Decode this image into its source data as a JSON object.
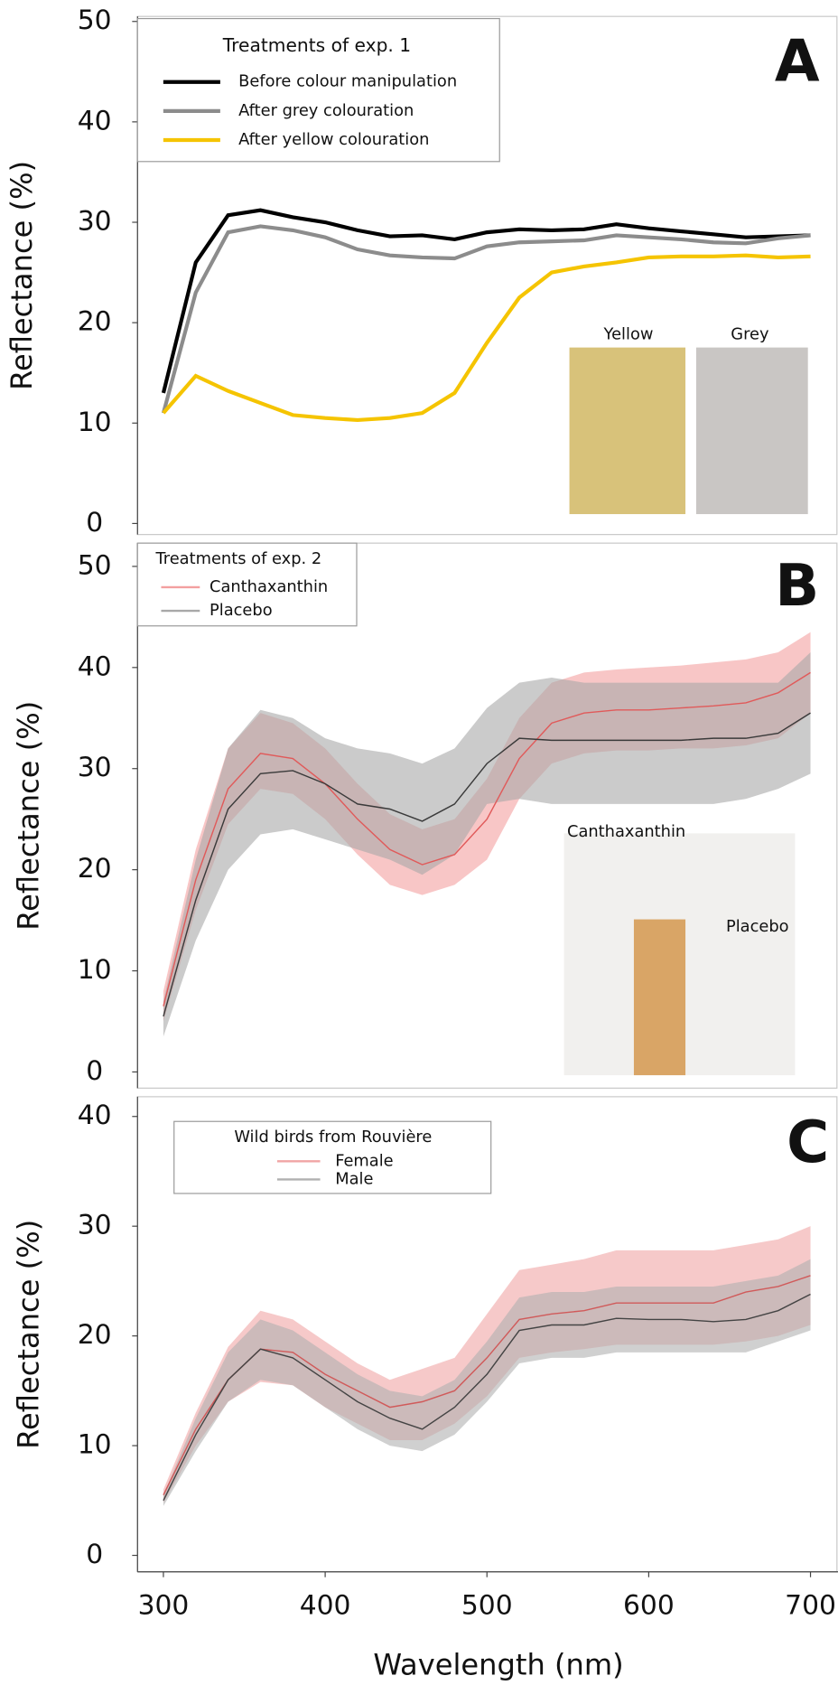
{
  "chart_data": [
    {
      "type": "line",
      "panel_label": "A",
      "ylabel": "Reflectance (%)",
      "legend_title": "Treatments of exp. 1",
      "xlim": [
        284,
        717
      ],
      "ylim": [
        -1.1,
        50.5
      ],
      "yticks": [
        0,
        10,
        20,
        30,
        40,
        50
      ],
      "x": [
        300,
        320,
        340,
        360,
        380,
        400,
        420,
        440,
        460,
        480,
        500,
        520,
        540,
        560,
        580,
        600,
        620,
        640,
        660,
        680,
        700
      ],
      "series": [
        {
          "name": "Before colour manipulation",
          "color": "#000000",
          "values": [
            13,
            26,
            30.7,
            31.2,
            30.5,
            30,
            29.2,
            28.6,
            28.7,
            28.3,
            29,
            29.3,
            29.2,
            29.3,
            29.8,
            29.4,
            29.1,
            28.8,
            28.5,
            28.6,
            28.7
          ]
        },
        {
          "name": "After grey colouration",
          "color": "#8c8c8c",
          "values": [
            11,
            23,
            29,
            29.6,
            29.2,
            28.5,
            27.3,
            26.7,
            26.5,
            26.4,
            27.6,
            28,
            28.1,
            28.2,
            28.7,
            28.5,
            28.3,
            28,
            27.9,
            28.4,
            28.7
          ]
        },
        {
          "name": "After yellow colouration",
          "color": "#f5c400",
          "values": [
            11,
            14.7,
            13.2,
            12,
            10.8,
            10.5,
            10.3,
            10.5,
            11,
            13,
            18,
            22.5,
            25,
            25.6,
            26,
            26.5,
            26.6,
            26.6,
            26.7,
            26.5,
            26.6
          ]
        }
      ],
      "annotations": [
        "Yellow",
        "Grey"
      ]
    },
    {
      "type": "line",
      "panel_label": "B",
      "ylabel": "Reflectance (%)",
      "legend_title": "Treatments of exp. 2",
      "xlim": [
        284,
        717
      ],
      "ylim": [
        -1.6,
        52.3
      ],
      "yticks": [
        0,
        10,
        20,
        30,
        40,
        50
      ],
      "x": [
        300,
        320,
        340,
        360,
        380,
        400,
        420,
        440,
        460,
        480,
        500,
        520,
        540,
        560,
        580,
        600,
        620,
        640,
        660,
        680,
        700
      ],
      "series": [
        {
          "name": "Canthaxanthin",
          "color": "#e05a5a",
          "band_color": "#f3a0a0",
          "values": [
            6.5,
            19,
            28,
            31.5,
            31,
            28.5,
            25,
            22,
            20.5,
            21.5,
            25,
            31,
            34.5,
            35.5,
            35.8,
            35.8,
            36,
            36.2,
            36.5,
            37.5,
            39.5
          ],
          "upper": [
            8,
            22,
            32,
            35.5,
            34.5,
            32,
            28.5,
            25.5,
            24,
            25,
            29,
            35,
            38.5,
            39.5,
            39.8,
            40,
            40.2,
            40.5,
            40.8,
            41.5,
            43.5
          ],
          "lower": [
            5,
            16,
            24.5,
            28,
            27.5,
            25,
            21.5,
            18.5,
            17.5,
            18.5,
            21,
            27,
            30.5,
            31.5,
            31.8,
            31.8,
            32,
            32,
            32.3,
            33,
            35.5
          ]
        },
        {
          "name": "Placebo",
          "color": "#3a3a3a",
          "band_color": "#a8a8a8",
          "values": [
            5.5,
            17,
            26,
            29.5,
            29.8,
            28.5,
            26.5,
            26,
            24.8,
            26.5,
            30.5,
            33,
            32.8,
            32.8,
            32.8,
            32.8,
            32.8,
            33,
            33,
            33.5,
            35.5
          ],
          "upper": [
            7,
            21,
            32,
            35.8,
            35,
            33,
            32,
            31.5,
            30.5,
            32,
            36,
            38.5,
            39,
            38.5,
            38.5,
            38.5,
            38.5,
            38.5,
            38.5,
            38.5,
            41.5
          ],
          "lower": [
            3.5,
            13,
            20,
            23.5,
            24,
            23,
            22,
            21,
            19.5,
            21.5,
            26.5,
            27,
            26.5,
            26.5,
            26.5,
            26.5,
            26.5,
            26.5,
            27,
            28,
            29.5
          ]
        }
      ],
      "annotations": [
        "Canthaxanthin",
        "Placebo"
      ]
    },
    {
      "type": "line",
      "panel_label": "C",
      "ylabel": "Reflectance (%)",
      "legend_title": "Wild birds from Rouvière",
      "xlabel": "Wavelength (nm)",
      "xlim": [
        284,
        717
      ],
      "xticks": [
        300,
        400,
        500,
        600,
        700
      ],
      "ylim": [
        -1.5,
        41.8
      ],
      "yticks": [
        0,
        10,
        20,
        30,
        40
      ],
      "x": [
        300,
        320,
        340,
        360,
        380,
        400,
        420,
        440,
        460,
        480,
        500,
        520,
        540,
        560,
        580,
        600,
        620,
        640,
        660,
        680,
        700
      ],
      "series": [
        {
          "name": "Female",
          "color": "#d05a5a",
          "band_color": "#f0a5a5",
          "values": [
            5.5,
            11.5,
            16,
            18.8,
            18.5,
            16.5,
            15,
            13.5,
            14,
            15,
            18,
            21.5,
            22,
            22.3,
            23,
            23,
            23,
            23,
            24,
            24.5,
            25.5
          ],
          "upper": [
            6,
            13,
            19,
            22.3,
            21.5,
            19.5,
            17.5,
            16,
            17,
            18,
            22,
            26,
            26.5,
            27,
            27.8,
            27.8,
            27.8,
            27.8,
            28.3,
            28.8,
            30
          ],
          "lower": [
            4.8,
            10,
            14,
            15.8,
            15.5,
            13.5,
            12,
            10.5,
            10.5,
            12,
            14.5,
            18,
            18.5,
            18.8,
            19.2,
            19.2,
            19.2,
            19.2,
            19.5,
            20,
            21
          ]
        },
        {
          "name": "Male",
          "color": "#444444",
          "band_color": "#b0b0b0",
          "values": [
            5,
            11,
            16,
            18.8,
            18,
            16,
            14,
            12.5,
            11.5,
            13.5,
            16.5,
            20.5,
            21,
            21,
            21.6,
            21.5,
            21.5,
            21.3,
            21.5,
            22.3,
            23.8
          ],
          "upper": [
            5.5,
            12.5,
            18.5,
            21.5,
            20.5,
            18.5,
            16.5,
            15,
            14.5,
            16,
            19.5,
            23.5,
            24,
            24,
            24.5,
            24.5,
            24.5,
            24.5,
            25,
            25.5,
            27
          ],
          "lower": [
            4.5,
            9.5,
            14,
            16,
            15.5,
            13.5,
            11.5,
            10,
            9.5,
            11,
            14,
            17.5,
            18,
            18,
            18.5,
            18.5,
            18.5,
            18.5,
            18.5,
            19.5,
            20.5
          ]
        }
      ]
    }
  ]
}
